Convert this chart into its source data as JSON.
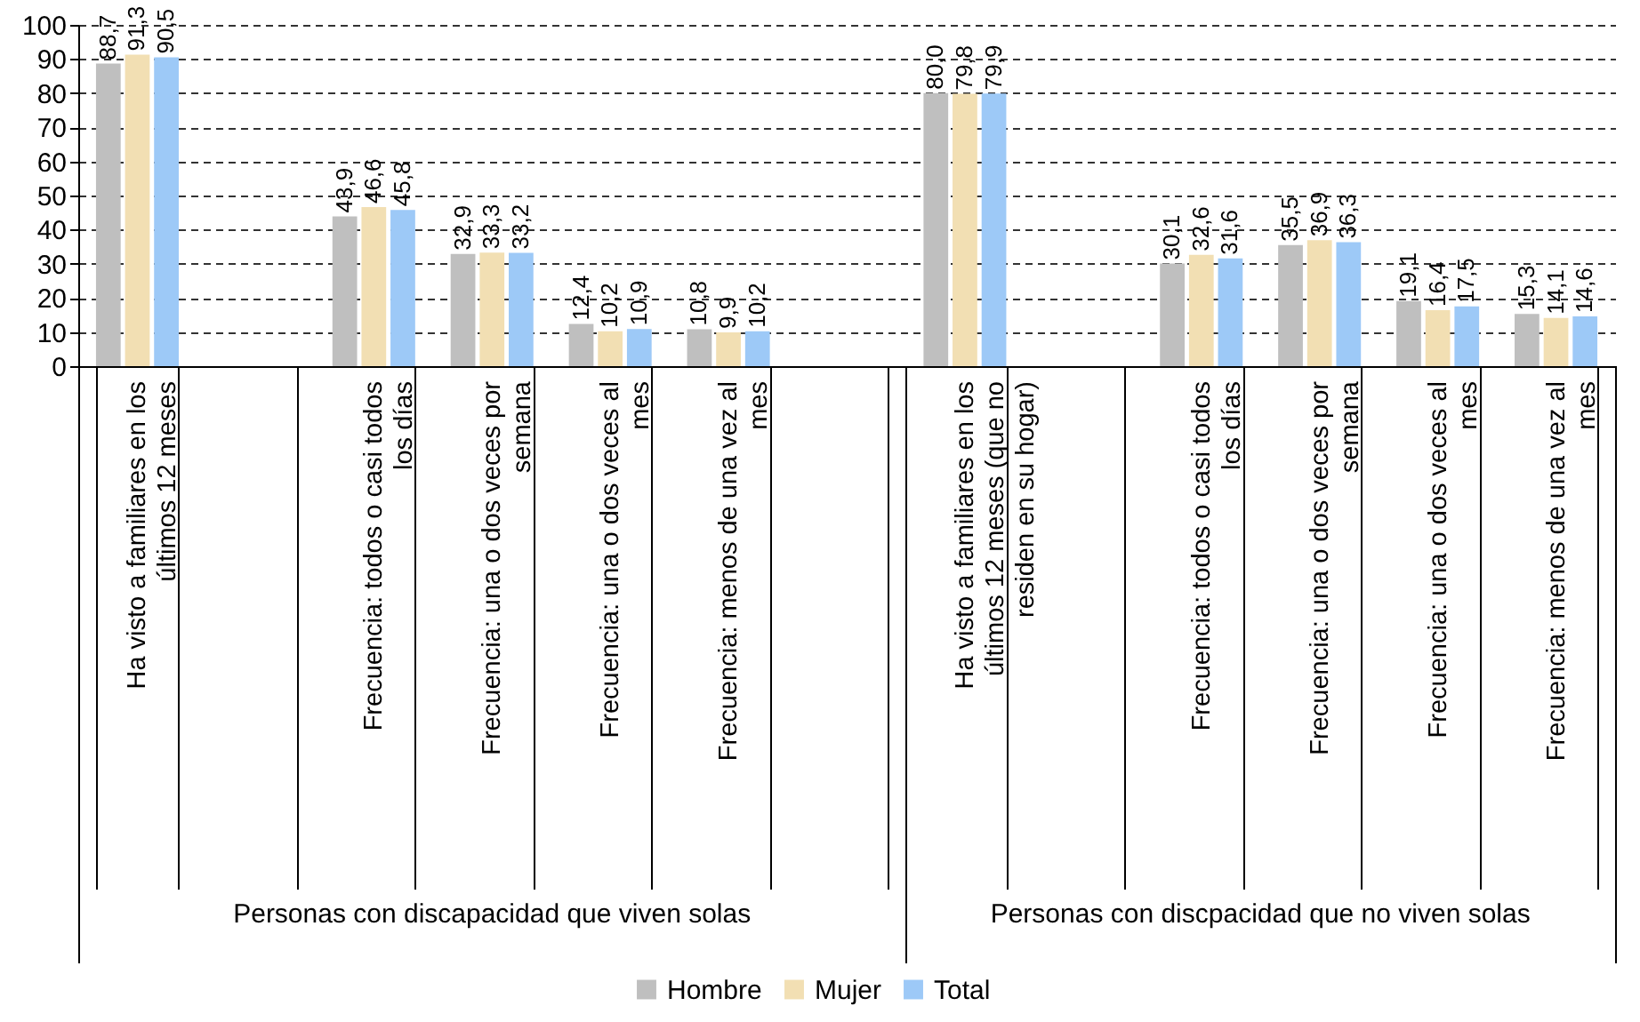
{
  "chart_data": {
    "type": "bar",
    "categories": [
      "Ha visto a familiares en los últimos 12 meses",
      null,
      "Frecuencia: todos o casi todos los días",
      "Frecuencia: una o dos veces por semana",
      "Frecuencia: una o dos veces al mes",
      "Frecuencia: menos de una vez al mes",
      null,
      "Ha visto a familiares en los últimos 12 meses (que no residen en su hogar)",
      null,
      "Frecuencia: todos o casi todos los días",
      "Frecuencia: una o dos veces por semana",
      "Frecuencia: una o dos veces al mes",
      "Frecuencia: menos de una vez al mes"
    ],
    "series": [
      {
        "name": "Hombre",
        "color": "#bfbfbf",
        "values": [
          88.7,
          null,
          43.9,
          32.9,
          12.4,
          10.8,
          null,
          80.0,
          null,
          30.1,
          35.5,
          19.1,
          15.3
        ],
        "value_labels": [
          "88,7",
          null,
          "43,9",
          "32,9",
          "12,4",
          "10,8",
          null,
          "80,0",
          null,
          "30,1",
          "35,5",
          "19,1",
          "15,3"
        ]
      },
      {
        "name": "Mujer",
        "color": "#f2dfb3",
        "values": [
          91.3,
          null,
          46.6,
          33.3,
          10.2,
          9.9,
          null,
          79.8,
          null,
          32.6,
          36.9,
          16.4,
          14.1
        ],
        "value_labels": [
          "91,3",
          null,
          "46,6",
          "33,3",
          "10,2",
          "9,9",
          null,
          "79,8",
          null,
          "32,6",
          "36,9",
          "16,4",
          "14,1"
        ]
      },
      {
        "name": "Total",
        "color": "#9dc9f7",
        "values": [
          90.5,
          null,
          45.8,
          33.2,
          10.9,
          10.2,
          null,
          79.9,
          null,
          31.6,
          36.3,
          17.5,
          14.6
        ],
        "value_labels": [
          "90,5",
          null,
          "45,8",
          "33,2",
          "10,9",
          "10,2",
          null,
          "79,9",
          null,
          "31,6",
          "36,3",
          "17,5",
          "14,6"
        ]
      }
    ],
    "ylim": [
      0,
      100
    ],
    "yticks": [
      0,
      10,
      20,
      30,
      40,
      50,
      60,
      70,
      80,
      90,
      100
    ],
    "grid": "y",
    "legend": "bottom",
    "annotations": [
      "Personas con discapacidad que viven solas",
      "Personas con discpacidad que no viven solas"
    ]
  }
}
